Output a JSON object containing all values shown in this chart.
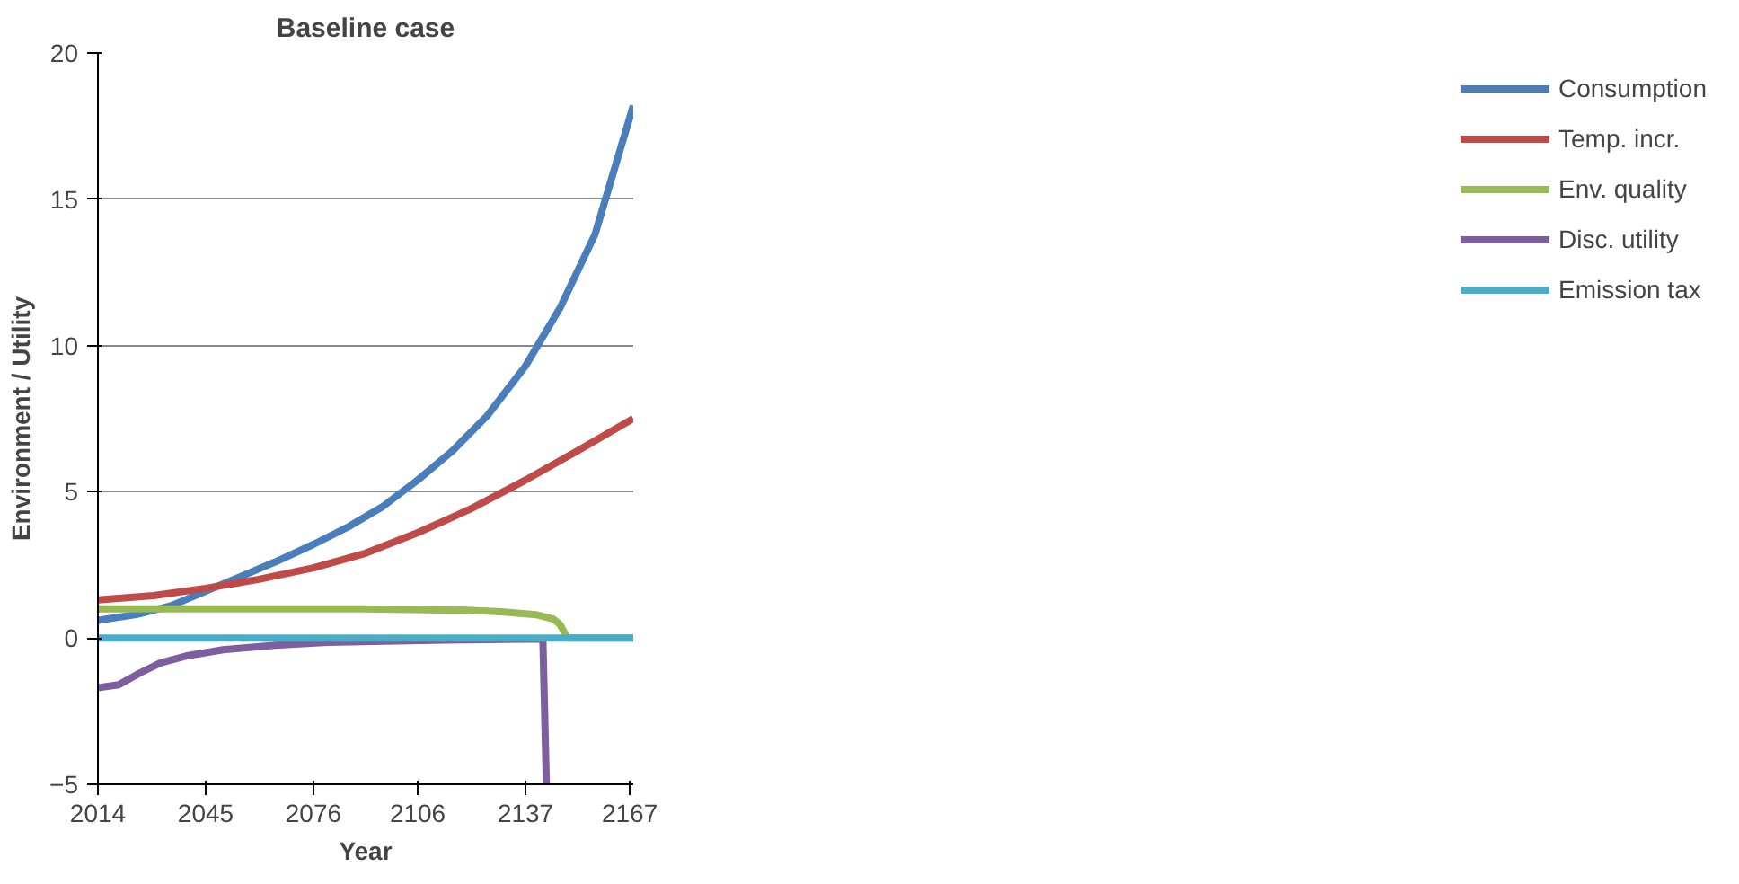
{
  "chart_data": {
    "type": "line",
    "title": "Baseline case",
    "xlabel": "Year",
    "ylabel": "Environment / Utility",
    "xlim": [
      2014,
      2168
    ],
    "xticks": [
      2014,
      2045,
      2076,
      2106,
      2137,
      2167
    ],
    "ylim": [
      -5,
      20
    ],
    "yticks": [
      -5,
      0,
      5,
      10,
      15,
      20
    ],
    "grid": "y",
    "legend": "right",
    "marker": "none",
    "line_style": "solid",
    "series": [
      {
        "name": "Consumption",
        "color": "#4a7ebb",
        "x": [
          2014,
          2025,
          2035,
          2045,
          2055,
          2065,
          2076,
          2086,
          2096,
          2106,
          2116,
          2126,
          2137,
          2147,
          2157,
          2163,
          2168
        ],
        "values": [
          0.6,
          0.8,
          1.1,
          1.6,
          2.1,
          2.6,
          3.2,
          3.8,
          4.5,
          5.4,
          6.4,
          7.6,
          9.3,
          11.3,
          13.8,
          16.2,
          18.2
        ]
      },
      {
        "name": "Temp. incr.",
        "color": "#be4b48",
        "x": [
          2014,
          2030,
          2045,
          2060,
          2076,
          2091,
          2106,
          2121,
          2137,
          2152,
          2168
        ],
        "values": [
          1.3,
          1.45,
          1.7,
          2.0,
          2.4,
          2.9,
          3.6,
          4.4,
          5.4,
          6.4,
          7.5
        ]
      },
      {
        "name": "Env. quality",
        "color": "#98b954",
        "x": [
          2014,
          2030,
          2060,
          2090,
          2120,
          2130,
          2140,
          2145,
          2147,
          2149,
          2168
        ],
        "values": [
          1.0,
          1.0,
          1.0,
          1.0,
          0.95,
          0.9,
          0.8,
          0.65,
          0.45,
          0.0,
          0.0
        ]
      },
      {
        "name": "Disc. utility",
        "color": "#7d5fa0",
        "x": [
          2014,
          2020,
          2026,
          2032,
          2040,
          2050,
          2065,
          2080,
          2100,
          2120,
          2142,
          2143
        ],
        "values": [
          -1.7,
          -1.6,
          -1.2,
          -0.85,
          -0.6,
          -0.4,
          -0.25,
          -0.15,
          -0.1,
          -0.06,
          -0.03,
          -5
        ]
      },
      {
        "name": "Emission tax",
        "color": "#4bacc6",
        "x": [
          2014,
          2168
        ],
        "values": [
          0,
          0
        ]
      }
    ]
  }
}
